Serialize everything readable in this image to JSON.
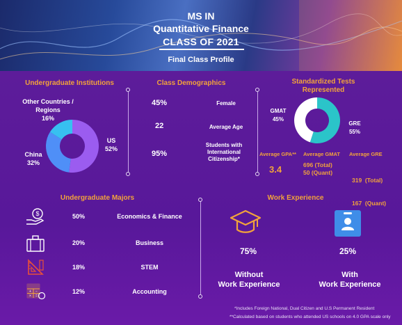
{
  "header": {
    "line1": "MS IN",
    "line2": "Quantitative Finance",
    "line3": "CLASS OF 2021",
    "subtitle": "Final Class Profile"
  },
  "undergrad_institutions": {
    "heading": "Undergraduate Institutions",
    "segments": [
      {
        "label": "US",
        "percent": "52%",
        "value": 52,
        "color": "#9b5cf0"
      },
      {
        "label": "China",
        "percent": "32%",
        "value": 32,
        "color": "#4f8ff7"
      },
      {
        "label": "Other Countries / Regions",
        "percent": "16%",
        "value": 16,
        "color": "#37c0f0"
      }
    ]
  },
  "demographics": {
    "heading": "Class Demographics",
    "rows": [
      {
        "value": "45%",
        "label": "Female"
      },
      {
        "value": "22",
        "label": "Average Age"
      },
      {
        "value": "95%",
        "label_lines": [
          "Students with",
          "International",
          "Citizenship*"
        ]
      }
    ]
  },
  "tests": {
    "heading_line1": "Standardized Tests",
    "heading_line2": "Represented",
    "segments": [
      {
        "label": "GMAT",
        "percent": "45%",
        "value": 45,
        "color": "#ffffff"
      },
      {
        "label": "GRE",
        "percent": "55%",
        "value": 55,
        "color": "#2bc4c9"
      }
    ],
    "stats": {
      "gpa_label": "Average GPA**",
      "gpa_value": "3.4",
      "gmat_label": "Average GMAT",
      "gmat_total": "696 (Total)",
      "gmat_quant": "50 (Quant)",
      "gre_label": "Average GRE",
      "gre_total": "319  (Total)",
      "gre_quant": "167  (Quant)"
    }
  },
  "majors": {
    "heading": "Undergraduate Majors",
    "items": [
      {
        "percent": "50%",
        "label": "Economics & Finance",
        "icon": "money-hand-icon"
      },
      {
        "percent": "20%",
        "label": "Business",
        "icon": "briefcase-icon"
      },
      {
        "percent": "18%",
        "label": "STEM",
        "icon": "ruler-triangle-icon"
      },
      {
        "percent": "12%",
        "label": "Accounting",
        "icon": "calculator-icon"
      }
    ]
  },
  "work": {
    "heading": "Work Experience",
    "without_pct": "75%",
    "without_l1": "Without",
    "without_l2": "Work Experience",
    "with_pct": "25%",
    "with_l1": "With",
    "with_l2": "Work Experience"
  },
  "footnotes": {
    "f1": "*Includes Foreign National, Dual Citizen and U.S Permanent Resident",
    "f2": "**Calculated based on students who attended US schools on 4.0 GPA scale only"
  },
  "colors": {
    "accent": "#f2a33b",
    "background": "#5a1a96",
    "teal": "#2bc4c9"
  }
}
